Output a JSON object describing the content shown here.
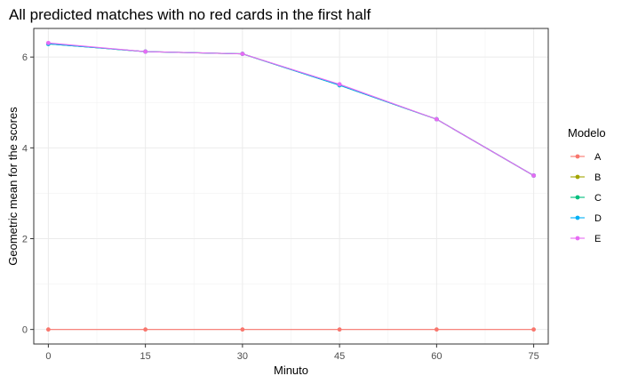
{
  "chart_data": {
    "type": "line",
    "title": "All predicted matches with no red cards in the first half",
    "xlabel": "Minuto",
    "ylabel": "Geometric mean for the scores",
    "x": [
      0,
      15,
      30,
      45,
      60,
      75
    ],
    "xticks": [
      0,
      15,
      30,
      45,
      60,
      75
    ],
    "yticks": [
      0,
      2,
      4,
      6
    ],
    "xlim": [
      -2.25,
      77.25
    ],
    "ylim": [
      -0.32,
      6.63
    ],
    "grid": true,
    "legend_title": "Modelo",
    "legend_position": "right",
    "series": [
      {
        "name": "A",
        "color": "#F8766D",
        "values": [
          0,
          0,
          0,
          0,
          0,
          0
        ]
      },
      {
        "name": "B",
        "color": "#A3A500",
        "values": [
          6.29,
          6.12,
          6.07,
          5.38,
          4.63,
          3.39
        ]
      },
      {
        "name": "C",
        "color": "#00BF7D",
        "values": [
          6.29,
          6.12,
          6.07,
          5.38,
          4.63,
          3.39
        ]
      },
      {
        "name": "D",
        "color": "#00B0F6",
        "values": [
          6.29,
          6.12,
          6.07,
          5.38,
          4.63,
          3.39
        ]
      },
      {
        "name": "E",
        "color": "#E76BF3",
        "values": [
          6.31,
          6.12,
          6.07,
          5.4,
          4.63,
          3.39
        ]
      }
    ]
  }
}
